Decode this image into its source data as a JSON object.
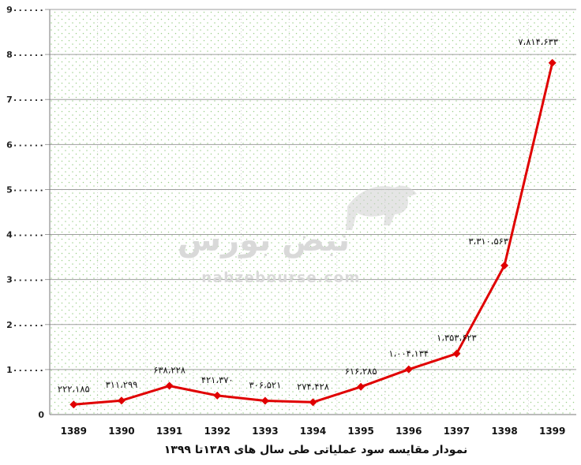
{
  "colors": {
    "line": "#e00000",
    "grid_major": "#9e9e9e",
    "grid_dots": "#9bd08a",
    "plot_bg": "#ffffff",
    "watermark": "#d4d4d4"
  },
  "watermark": {
    "logo_text": "نبض بورس",
    "url_text": "nabzebourse.com"
  },
  "chart_data": {
    "type": "line",
    "title": "",
    "xlabel": "نمودار مقایسه سود عملیاتی طی سال های ۱۳۸۹تا ۱۳۹۹",
    "ylabel": "",
    "ylim": [
      0,
      9000000
    ],
    "y_ticks": [
      {
        "value": 0,
        "label": "0"
      },
      {
        "value": 1000000,
        "label": "1۰۰۰۰۰۰"
      },
      {
        "value": 2000000,
        "label": "2۰۰۰۰۰۰"
      },
      {
        "value": 3000000,
        "label": "3۰۰۰۰۰۰"
      },
      {
        "value": 4000000,
        "label": "4۰۰۰۰۰۰"
      },
      {
        "value": 5000000,
        "label": "5۰۰۰۰۰۰"
      },
      {
        "value": 6000000,
        "label": "6۰۰۰۰۰۰"
      },
      {
        "value": 7000000,
        "label": "7۰۰۰۰۰۰"
      },
      {
        "value": 8000000,
        "label": "8۰۰۰۰۰۰"
      },
      {
        "value": 9000000,
        "label": "9۰۰۰۰۰۰"
      }
    ],
    "categories": [
      "1389",
      "1390",
      "1391",
      "1392",
      "1393",
      "1394",
      "1395",
      "1396",
      "1397",
      "1398",
      "1399"
    ],
    "series": [
      {
        "values": [
          222185,
          311299,
          638228,
          421370,
          306521,
          274428,
          616285,
          1004134,
          1353623,
          3310563,
          7814633
        ],
        "labels": [
          "۲۲۲،۱۸۵",
          "۳۱۱،۲۹۹",
          "۶۳۸،۲۲۸",
          "۴۲۱،۳۷۰",
          "۳۰۶،۵۲۱",
          "۲۷۴،۴۲۸",
          "۶۱۶،۲۸۵",
          "۱،۰۰۴،۱۳۴",
          "۱،۳۵۳،۶۲۳",
          "۳،۳۱۰،۵۶۳",
          "۷،۸۱۴،۶۳۳"
        ]
      }
    ],
    "grid": true,
    "legend": "none"
  }
}
